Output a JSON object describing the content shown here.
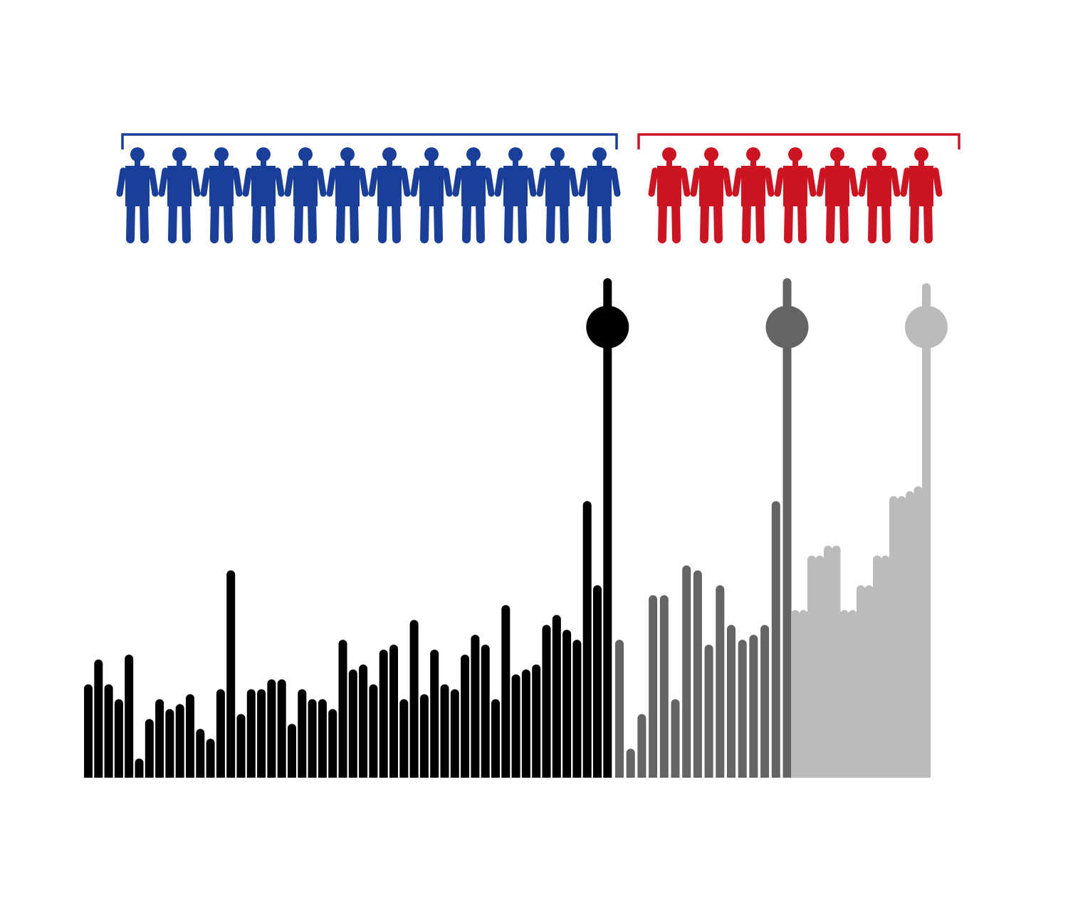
{
  "colors": {
    "group_a": "#1a3f99",
    "group_b": "#cc1422",
    "series_black": "#000000",
    "series_dark_gray": "#646464",
    "series_light_gray": "#bbbbbb"
  },
  "groups": [
    {
      "id": "group-a",
      "count": 12,
      "color_key": "group_a",
      "icon": "person-icon"
    },
    {
      "id": "group-b",
      "count": 7,
      "color_key": "group_b",
      "icon": "person-icon"
    }
  ],
  "chart_data": {
    "type": "bar",
    "axes_visible": false,
    "ylim": [
      0,
      100
    ],
    "series": [
      {
        "color_key": "series_black",
        "values": [
          18,
          23,
          18,
          15,
          24,
          3,
          11,
          15,
          13,
          14,
          16,
          9,
          7,
          17,
          41,
          12,
          17,
          17,
          19,
          19,
          10,
          17,
          15,
          15,
          13,
          27,
          21,
          22,
          18,
          25,
          26,
          15,
          31,
          16,
          25,
          18,
          17,
          24,
          28,
          26,
          15,
          34,
          20,
          21,
          22,
          30,
          32,
          29,
          27,
          55,
          38,
          100
        ],
        "marker_index": 51,
        "marker_value": 91
      },
      {
        "color_key": "series_dark_gray",
        "values": [
          27,
          5,
          12,
          36,
          36,
          15,
          42,
          41,
          26,
          38,
          30,
          27,
          28,
          30,
          55,
          100
        ],
        "marker_index": 15,
        "marker_value": 91
      },
      {
        "color_key": "series_light_gray",
        "values": [
          33,
          33,
          44,
          44,
          46,
          46,
          33,
          33,
          38,
          38,
          44,
          44,
          56,
          56,
          57,
          58,
          99
        ],
        "marker_index": 16,
        "marker_value": 91
      }
    ]
  }
}
